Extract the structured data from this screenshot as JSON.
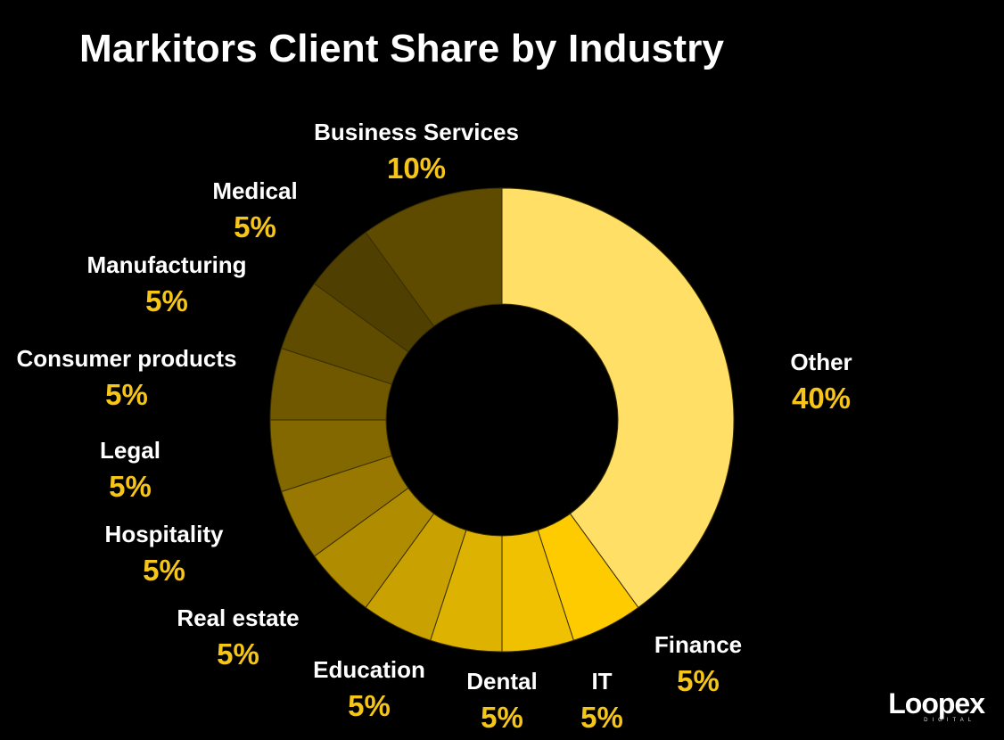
{
  "chart_data": {
    "type": "pie",
    "title": "Markitors Client Share by Industry",
    "slices": [
      {
        "label": "Other",
        "value": 40,
        "display": "40%",
        "color": "#FFDF66"
      },
      {
        "label": "Finance",
        "value": 5,
        "display": "5%",
        "color": "#FECB00"
      },
      {
        "label": "IT",
        "value": 5,
        "display": "5%",
        "color": "#EFC100"
      },
      {
        "label": "Dental",
        "value": 5,
        "display": "5%",
        "color": "#DDB200"
      },
      {
        "label": "Education",
        "value": 5,
        "display": "5%",
        "color": "#C9A100"
      },
      {
        "label": "Real estate",
        "value": 5,
        "display": "5%",
        "color": "#B08C00"
      },
      {
        "label": "Hospitality",
        "value": 5,
        "display": "5%",
        "color": "#987800"
      },
      {
        "label": "Legal",
        "value": 5,
        "display": "5%",
        "color": "#836800"
      },
      {
        "label": "Consumer products",
        "value": 5,
        "display": "5%",
        "color": "#6F5800"
      },
      {
        "label": "Manufacturing",
        "value": 5,
        "display": "5%",
        "color": "#5F4C00"
      },
      {
        "label": "Medical",
        "value": 5,
        "display": "5%",
        "color": "#4F3F00"
      },
      {
        "label": "Business Services",
        "value": 10,
        "display": "10%",
        "color": "#5E4B00"
      }
    ],
    "value_label_color": "#F5C518",
    "slice_gap_color": "#3A2F00",
    "donut_hole": true,
    "legend": "none"
  },
  "logo": {
    "text": "Loopex",
    "subtext": "DIGITAL"
  }
}
